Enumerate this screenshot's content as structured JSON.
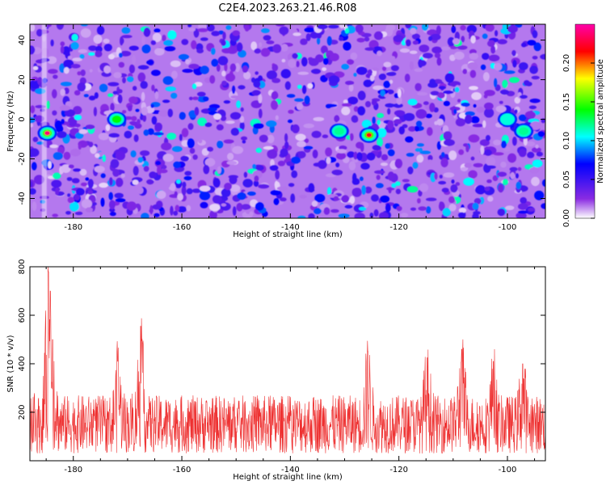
{
  "chart_data": [
    {
      "type": "heatmap",
      "title": "C2E4.2023.263.21.46.R08",
      "xlabel": "Height of straight line (km)",
      "ylabel": "Frequency (Hz)",
      "xlim": [
        -188,
        -93
      ],
      "ylim": [
        -50,
        48
      ],
      "xticks": [
        -180,
        -160,
        -140,
        -120,
        -100
      ],
      "yticks": [
        -40,
        -20,
        0,
        20,
        40
      ],
      "colorbar": {
        "label": "Normalized spectral amplitude",
        "range": [
          0,
          0.25
        ],
        "ticks": [
          0.0,
          0.05,
          0.1,
          0.15,
          0.2
        ],
        "tick_labels": [
          "0.00",
          "0.05",
          "0.10",
          "0.15",
          "0.20"
        ],
        "colormap": [
          "#ffffff",
          "#8a2be2",
          "#0000ff",
          "#00ffff",
          "#00ff00",
          "#ffff00",
          "#ff0000",
          "#ff00aa"
        ]
      },
      "hotspots": [
        {
          "x": -184.8,
          "y": -7,
          "amplitude": 0.24
        },
        {
          "x": -172,
          "y": 0,
          "amplitude": 0.14
        },
        {
          "x": -125.5,
          "y": -8,
          "amplitude": 0.22
        },
        {
          "x": -131,
          "y": -6,
          "amplitude": 0.12
        },
        {
          "x": -100,
          "y": 0,
          "amplitude": 0.11
        },
        {
          "x": -97,
          "y": -6,
          "amplitude": 0.12
        }
      ],
      "grid": false
    },
    {
      "type": "line",
      "xlabel": "Height of straight line (km)",
      "ylabel": "SNR (10 * v/v)",
      "xlim": [
        -188,
        -93
      ],
      "ylim": [
        0,
        800
      ],
      "xticks": [
        -180,
        -160,
        -140,
        -120,
        -100
      ],
      "yticks": [
        200,
        400,
        600,
        800
      ],
      "series": [
        {
          "color": "#ee3030",
          "baseline": 120,
          "peaks": [
            {
              "x": -184.6,
              "y": 780
            },
            {
              "x": -184.2,
              "y": 700
            },
            {
              "x": -183.8,
              "y": 500
            },
            {
              "x": -171.8,
              "y": 410
            },
            {
              "x": -167.6,
              "y": 555
            },
            {
              "x": -125.7,
              "y": 450
            },
            {
              "x": -114.8,
              "y": 425
            },
            {
              "x": -108.4,
              "y": 460
            },
            {
              "x": -102.6,
              "y": 410
            },
            {
              "x": -97.2,
              "y": 400
            }
          ]
        }
      ],
      "grid": false
    }
  ]
}
